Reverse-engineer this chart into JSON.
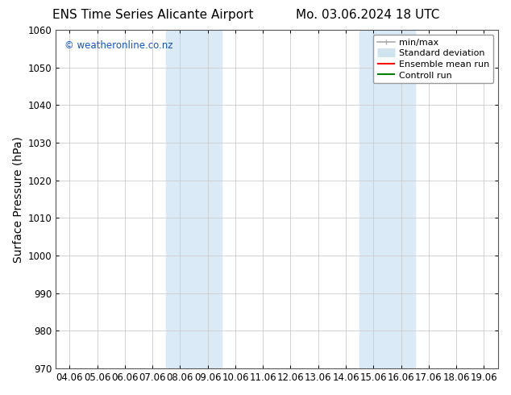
{
  "title_left": "ENS Time Series Alicante Airport",
  "title_right": "Mo. 03.06.2024 18 UTC",
  "ylabel": "Surface Pressure (hPa)",
  "ylim": [
    970,
    1060
  ],
  "yticks": [
    970,
    980,
    990,
    1000,
    1010,
    1020,
    1030,
    1040,
    1050,
    1060
  ],
  "xtick_labels": [
    "04.06",
    "05.06",
    "06.06",
    "07.06",
    "08.06",
    "09.06",
    "10.06",
    "11.06",
    "12.06",
    "13.06",
    "14.06",
    "15.06",
    "16.06",
    "17.06",
    "18.06",
    "19.06"
  ],
  "shaded_bands": [
    {
      "xmin": 4,
      "xmax": 6,
      "color": "#daeaf7"
    },
    {
      "xmin": 11,
      "xmax": 13,
      "color": "#daeaf7"
    }
  ],
  "copyright_text": "© weatheronline.co.nz",
  "copyright_color": "#1155cc",
  "legend_items": [
    {
      "label": "min/max",
      "color": "#aaaaaa",
      "lw": 1.2,
      "style": "line_with_caps"
    },
    {
      "label": "Standard deviation",
      "color": "#d0e4f0",
      "lw": 8,
      "style": "thick_line"
    },
    {
      "label": "Ensemble mean run",
      "color": "red",
      "lw": 1.5,
      "style": "line"
    },
    {
      "label": "Controll run",
      "color": "green",
      "lw": 1.5,
      "style": "line"
    }
  ],
  "bg_color": "#ffffff",
  "grid_color": "#cccccc",
  "title_fontsize": 11,
  "tick_fontsize": 8.5,
  "label_fontsize": 10,
  "legend_fontsize": 8
}
